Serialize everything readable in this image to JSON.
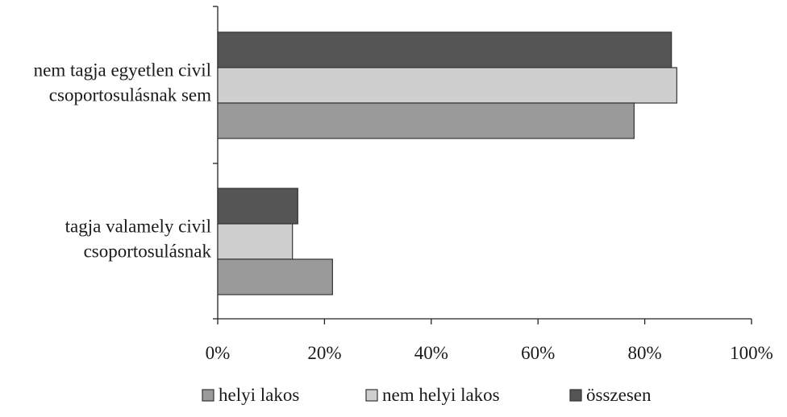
{
  "chart_data": {
    "type": "bar",
    "orientation": "horizontal",
    "categories": [
      [
        "nem tagja egyetlen civil",
        "csoportosulásnak sem"
      ],
      [
        "tagja valamely civil",
        "csoportosulásnak"
      ]
    ],
    "series": [
      {
        "name": "helyi lakos",
        "color": "#9a9a9a",
        "values": [
          78,
          21.5
        ]
      },
      {
        "name": "nem helyi lakos",
        "color": "#cfcfcf",
        "values": [
          86,
          14
        ]
      },
      {
        "name": "összesen",
        "color": "#555555",
        "values": [
          85,
          15
        ]
      }
    ],
    "x_ticks": [
      "0%",
      "20%",
      "40%",
      "60%",
      "80%",
      "100%"
    ],
    "xlim": [
      0,
      100
    ],
    "grid": false,
    "legend_position": "bottom"
  }
}
